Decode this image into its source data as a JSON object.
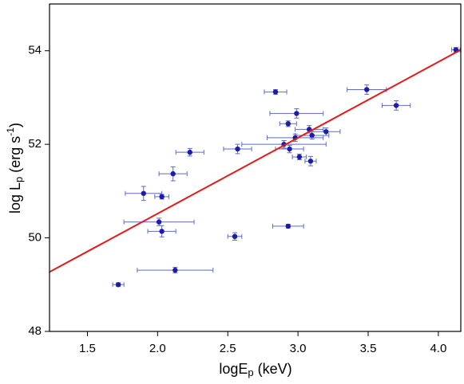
{
  "chart_data": {
    "type": "scatter",
    "xlabel": {
      "text": "logE",
      "sub": "p",
      "rest": " (keV)"
    },
    "ylabel": {
      "text": "log L",
      "sub": "p",
      "rest": " (erg s",
      "sup": "-1",
      "end": ")"
    },
    "xlim": [
      1.23,
      4.16
    ],
    "ylim": [
      48,
      55
    ],
    "xticks": [
      1.5,
      {
        "value": 2,
        "label": "2.0"
      },
      2.5,
      {
        "value": 3,
        "label": "3.0"
      },
      3.5,
      {
        "value": 4,
        "label": "4.0"
      }
    ],
    "yticks": [
      48,
      50,
      52,
      54
    ],
    "series": [
      {
        "color": "#1c1ca8",
        "error_color": "#5a6ec8",
        "x": [
          4.125,
          2.84,
          3.49,
          3.7,
          2.99,
          2.93,
          3.08,
          3.2,
          3.1,
          2.98,
          2.9,
          2.94,
          3.01,
          3.09,
          2.57,
          2.23,
          2.11,
          1.9,
          2.03,
          2.01,
          2.03,
          2.93,
          2.55,
          2.125,
          1.72
        ],
        "y": [
          54.02,
          53.12,
          53.17,
          52.83,
          52.66,
          52.44,
          52.32,
          52.27,
          52.19,
          52.14,
          52.0,
          51.9,
          51.73,
          51.64,
          51.9,
          51.83,
          51.37,
          50.95,
          50.88,
          50.34,
          50.14,
          50.25,
          50.03,
          49.31,
          49.0
        ],
        "xerr": [
          0.03,
          0.08,
          0.14,
          0.1,
          0.19,
          0.06,
          0.1,
          0.1,
          0.12,
          0.2,
          0.3,
          0.1,
          0.05,
          0.04,
          0.1,
          0.1,
          0.1,
          0.13,
          0.05,
          0.25,
          0.1,
          0.11,
          0.05,
          0.27,
          0.04
        ],
        "yerr": [
          0.05,
          0.05,
          0.1,
          0.1,
          0.1,
          0.06,
          0.08,
          0.08,
          0.08,
          0.08,
          0.08,
          0.08,
          0.06,
          0.1,
          0.1,
          0.08,
          0.15,
          0.15,
          0.05,
          0.08,
          0.12,
          0.04,
          0.08,
          0.06,
          0.04
        ]
      }
    ],
    "fit": {
      "color": "#e41a1a",
      "x": [
        1.23,
        4.16
      ],
      "y": [
        49.27,
        54.02
      ]
    }
  }
}
